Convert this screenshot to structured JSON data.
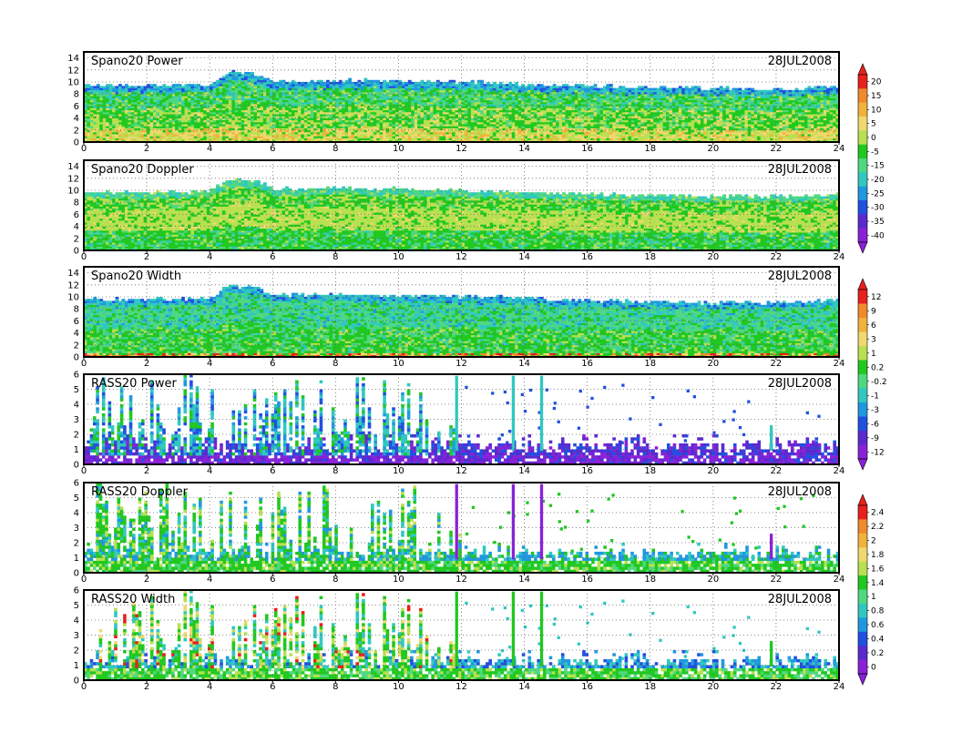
{
  "date": "28JUL2008",
  "colorbars": [
    {
      "id": "cb-spano-power-doppler",
      "labels": [
        "20",
        "15",
        "10",
        "5",
        "0",
        "-5",
        "-15",
        "-20",
        "-25",
        "-30",
        "-35",
        "-40"
      ],
      "colors": [
        "#e8201e",
        "#f08a2c",
        "#f0b23a",
        "#f0d870",
        "#b8e050",
        "#20c820",
        "#50d880",
        "#30c8c0",
        "#2098e0",
        "#2050e0",
        "#5a2ad0",
        "#8a20d8"
      ]
    },
    {
      "id": "cb-spano-width-rass-power",
      "labels": [
        "12",
        "9",
        "6",
        "3",
        "1",
        "0.2",
        "-0.2",
        "-1",
        "-3",
        "-6",
        "-9",
        "-12"
      ],
      "colors": [
        "#e8201e",
        "#f08a2c",
        "#f0b23a",
        "#f0d870",
        "#b8e050",
        "#20c820",
        "#50d880",
        "#30c8c0",
        "#2098e0",
        "#2050e0",
        "#5a2ad0",
        "#8a20d8"
      ]
    },
    {
      "id": "cb-rass-doppler-width",
      "labels": [
        "2.4",
        "2.2",
        "2",
        "1.8",
        "1.6",
        "1.4",
        "1",
        "0.8",
        "0.6",
        "0.4",
        "0.2",
        "0"
      ],
      "colors": [
        "#e8201e",
        "#f08a2c",
        "#f0b23a",
        "#f0d870",
        "#b8e050",
        "#20c820",
        "#50d880",
        "#30c8c0",
        "#2098e0",
        "#2050e0",
        "#5a2ad0",
        "#8a20d8"
      ]
    }
  ],
  "chart_data": [
    {
      "type": "heatmap",
      "title": "Spano20  Power",
      "date": "28JUL2008",
      "xlim": [
        0,
        24
      ],
      "xticks": [
        0,
        2,
        4,
        6,
        8,
        10,
        12,
        14,
        16,
        18,
        20,
        22,
        24
      ],
      "ylim": [
        0,
        15
      ],
      "yticks": [
        0,
        2,
        4,
        6,
        8,
        10,
        12,
        14
      ],
      "grid": true,
      "colorbar": "cb-spano-power-doppler",
      "echo_top_by_hour": [
        [
          0,
          9.6
        ],
        [
          2,
          9.6
        ],
        [
          4,
          9.8
        ],
        [
          4.6,
          11.8
        ],
        [
          5.5,
          11.5
        ],
        [
          6,
          10.2
        ],
        [
          8,
          10.4
        ],
        [
          10,
          10.4
        ],
        [
          12,
          10.2
        ],
        [
          14,
          9.8
        ],
        [
          16,
          9.6
        ],
        [
          18,
          9.2
        ],
        [
          20,
          9.2
        ],
        [
          22,
          9.0
        ],
        [
          24,
          9.4
        ]
      ]
    },
    {
      "type": "heatmap",
      "title": "Spano20  Doppler",
      "date": "28JUL2008",
      "xlim": [
        0,
        24
      ],
      "xticks": [
        0,
        2,
        4,
        6,
        8,
        10,
        12,
        14,
        16,
        18,
        20,
        22,
        24
      ],
      "ylim": [
        0,
        15
      ],
      "yticks": [
        0,
        2,
        4,
        6,
        8,
        10,
        12,
        14
      ],
      "grid": true,
      "colorbar": "cb-spano-power-doppler",
      "echo_top_by_hour": [
        [
          0,
          9.8
        ],
        [
          2,
          9.8
        ],
        [
          4,
          10.0
        ],
        [
          4.6,
          12.0
        ],
        [
          5.5,
          11.8
        ],
        [
          6,
          10.4
        ],
        [
          8,
          10.6
        ],
        [
          10,
          10.4
        ],
        [
          12,
          10.2
        ],
        [
          14,
          9.8
        ],
        [
          16,
          9.6
        ],
        [
          18,
          9.4
        ],
        [
          20,
          9.2
        ],
        [
          22,
          9.2
        ],
        [
          24,
          9.6
        ]
      ]
    },
    {
      "type": "heatmap",
      "title": "Spano20  Width",
      "date": "28JUL2008",
      "xlim": [
        0,
        24
      ],
      "xticks": [
        0,
        2,
        4,
        6,
        8,
        10,
        12,
        14,
        16,
        18,
        20,
        22,
        24
      ],
      "ylim": [
        0,
        15
      ],
      "yticks": [
        0,
        2,
        4,
        6,
        8,
        10,
        12,
        14
      ],
      "grid": true,
      "colorbar": "cb-spano-width-rass-power",
      "echo_top_by_hour": [
        [
          0,
          9.8
        ],
        [
          2,
          9.8
        ],
        [
          4,
          10.0
        ],
        [
          4.6,
          12.0
        ],
        [
          5.5,
          11.8
        ],
        [
          6,
          10.6
        ],
        [
          8,
          10.6
        ],
        [
          10,
          10.4
        ],
        [
          12,
          10.2
        ],
        [
          14,
          10.0
        ],
        [
          16,
          9.6
        ],
        [
          18,
          9.4
        ],
        [
          20,
          9.2
        ],
        [
          22,
          9.2
        ],
        [
          24,
          9.6
        ]
      ]
    },
    {
      "type": "heatmap",
      "title": "RASS20  Power",
      "date": "28JUL2008",
      "xlim": [
        0,
        24
      ],
      "xticks": [
        0,
        2,
        4,
        6,
        8,
        10,
        12,
        14,
        16,
        18,
        20,
        22,
        24
      ],
      "ylim": [
        0,
        6
      ],
      "yticks": [
        0,
        1,
        2,
        3,
        4,
        5,
        6
      ],
      "grid": true,
      "colorbar": "cb-spano-width-rass-power"
    },
    {
      "type": "heatmap",
      "title": "RASS20  Doppler",
      "date": "28JUL2008",
      "xlim": [
        0,
        24
      ],
      "xticks": [
        0,
        2,
        4,
        6,
        8,
        10,
        12,
        14,
        16,
        18,
        20,
        22,
        24
      ],
      "ylim": [
        0,
        6
      ],
      "yticks": [
        0,
        1,
        2,
        3,
        4,
        5,
        6
      ],
      "grid": true,
      "colorbar": "cb-rass-doppler-width"
    },
    {
      "type": "heatmap",
      "title": "RASS20  Width",
      "date": "28JUL2008",
      "xlim": [
        0,
        24
      ],
      "xticks": [
        0,
        2,
        4,
        6,
        8,
        10,
        12,
        14,
        16,
        18,
        20,
        22,
        24
      ],
      "ylim": [
        0,
        6
      ],
      "yticks": [
        0,
        1,
        2,
        3,
        4,
        5,
        6
      ],
      "grid": true,
      "colorbar": "cb-rass-doppler-width"
    }
  ]
}
